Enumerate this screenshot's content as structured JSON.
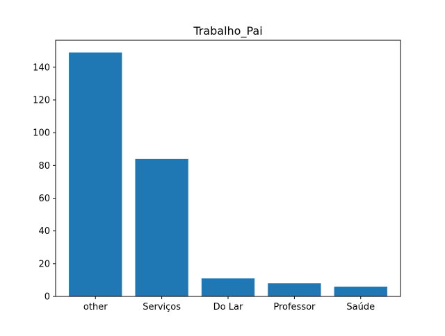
{
  "chart_data": {
    "type": "bar",
    "title": "Trabalho_Pai",
    "xlabel": "",
    "ylabel": "",
    "categories": [
      "other",
      "Serviços",
      "Do Lar",
      "Professor",
      "Saúde"
    ],
    "values": [
      149,
      84,
      11,
      8,
      6
    ],
    "ylim": [
      0,
      156.45
    ],
    "yticks": [
      0,
      20,
      40,
      60,
      80,
      100,
      120,
      140
    ],
    "bar_color": "#1f77b4",
    "grid": false,
    "legend": "none"
  }
}
